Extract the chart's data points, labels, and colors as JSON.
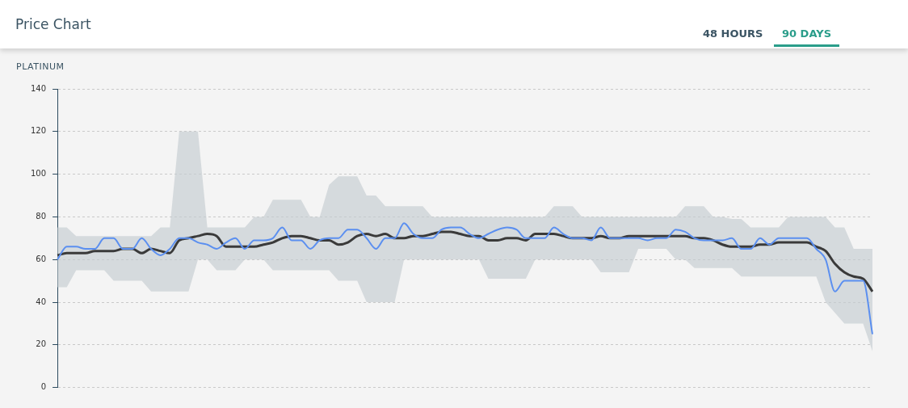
{
  "chart_data": {
    "type": "line",
    "title": "Price Chart",
    "ylabel": "PLATINUM",
    "annotations": [
      "48 HOURS",
      "90 DAYS"
    ],
    "categories": [
      null,
      null,
      null,
      null,
      null,
      null,
      null,
      null,
      null,
      null,
      null,
      null,
      null,
      null,
      null,
      null,
      null,
      null,
      null,
      null,
      null,
      null,
      null,
      null,
      null,
      null,
      null,
      null,
      null,
      null,
      null,
      null,
      null,
      null,
      null,
      null,
      null,
      null,
      null,
      null,
      null,
      null,
      null,
      null,
      null,
      null,
      null,
      null,
      null,
      null,
      null,
      null,
      null,
      null,
      null,
      null,
      null,
      null,
      null,
      null,
      null,
      null,
      null,
      null,
      null,
      null,
      null,
      null,
      null,
      null,
      null,
      null,
      null,
      null,
      null,
      null,
      null,
      null,
      null,
      null,
      null,
      null,
      null,
      null,
      null,
      null,
      null,
      null
    ],
    "series": [
      {
        "color": "#5b8ff0",
        "values": [
          60,
          66,
          66,
          65,
          65,
          70,
          70,
          65,
          65,
          70,
          65,
          62,
          65,
          70,
          70,
          68,
          67,
          65,
          68,
          70,
          65,
          69,
          69,
          70,
          75,
          69,
          69,
          65,
          69,
          70,
          70,
          74,
          74,
          70,
          65,
          70,
          70,
          77,
          72,
          70,
          70,
          74,
          75,
          75,
          72,
          70,
          72,
          74,
          75,
          74,
          70,
          70,
          70,
          75,
          72,
          70,
          70,
          69,
          75,
          70,
          70,
          70,
          70,
          69,
          70,
          70,
          74,
          73,
          70,
          69,
          69,
          69,
          70,
          65,
          65,
          70,
          67,
          70,
          70,
          70,
          70,
          65,
          60,
          45,
          50,
          50,
          50,
          25
        ]
      },
      {
        "color": "#3a3a3a",
        "values": [
          62,
          63,
          63,
          63,
          64,
          64,
          64,
          65,
          65,
          63,
          65,
          64,
          63,
          69,
          70,
          71,
          72,
          71,
          66,
          66,
          66,
          66,
          67,
          68,
          70,
          71,
          71,
          70,
          69,
          69,
          67,
          68,
          71,
          72,
          71,
          72,
          70,
          70,
          71,
          71,
          72,
          73,
          73,
          72,
          71,
          71,
          69,
          69,
          70,
          70,
          69,
          72,
          72,
          72,
          71,
          70,
          70,
          70,
          71,
          70,
          70,
          71,
          71,
          71,
          71,
          71,
          71,
          71,
          70,
          70,
          69,
          67,
          66,
          66,
          66,
          67,
          67,
          68,
          68,
          68,
          68,
          66,
          64,
          58,
          54,
          52,
          51,
          45
        ],
        "lower": [
          47,
          47,
          55,
          55,
          55,
          55,
          50,
          50,
          50,
          50,
          45,
          45,
          45,
          45,
          45,
          60,
          60,
          55,
          55,
          55,
          60,
          60,
          60,
          55,
          55,
          55,
          55,
          55,
          55,
          55,
          50,
          50,
          50,
          40,
          40,
          40,
          40,
          60,
          60,
          60,
          60,
          60,
          60,
          60,
          60,
          60,
          51,
          51,
          51,
          51,
          51,
          60,
          60,
          60,
          60,
          60,
          60,
          60,
          54,
          54,
          54,
          54,
          65,
          65,
          65,
          65,
          60,
          60,
          56,
          56,
          56,
          56,
          56,
          52,
          52,
          52,
          52,
          52,
          52,
          52,
          52,
          52,
          40,
          35,
          30,
          30,
          30,
          17
        ],
        "upper": [
          75,
          75,
          71,
          71,
          71,
          71,
          71,
          71,
          71,
          71,
          71,
          75,
          75,
          120,
          120,
          120,
          75,
          75,
          75,
          75,
          75,
          80,
          80,
          88,
          88,
          88,
          88,
          80,
          80,
          95,
          99,
          99,
          99,
          90,
          90,
          85,
          85,
          85,
          85,
          85,
          80,
          80,
          80,
          80,
          80,
          80,
          80,
          80,
          80,
          80,
          80,
          80,
          80,
          85,
          85,
          85,
          80,
          80,
          80,
          80,
          80,
          80,
          80,
          80,
          80,
          80,
          80,
          85,
          85,
          85,
          80,
          80,
          79,
          79,
          75,
          75,
          75,
          75,
          80,
          80,
          80,
          80,
          80,
          75,
          75,
          65,
          65,
          65
        ]
      }
    ],
    "ylim": [
      0,
      140
    ],
    "yticks": [
      0,
      20,
      40,
      60,
      80,
      100,
      120,
      140
    ],
    "grid": "y",
    "legend": false
  }
}
